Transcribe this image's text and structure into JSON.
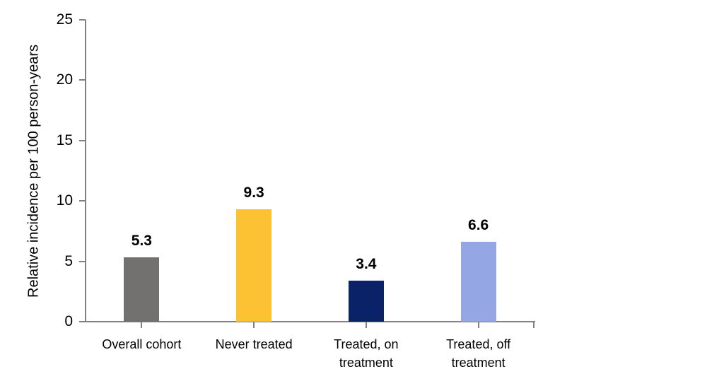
{
  "chart_data": {
    "type": "bar",
    "title": "",
    "ylabel": "Relative incidence per 100 person-years",
    "xlabel": "",
    "categories": [
      "Overall cohort",
      "Never treated",
      "Treated, on\ntreatment",
      "Treated, off\ntreatment"
    ],
    "values": [
      5.3,
      9.3,
      3.4,
      6.6
    ],
    "value_labels": [
      "5.3",
      "9.3",
      "3.4",
      "6.6"
    ],
    "bar_colors": [
      "#737070",
      "#FCC233",
      "#0A2268",
      "#94A7E4"
    ],
    "yticks": [
      0,
      5,
      10,
      15,
      20,
      25
    ],
    "ylim": [
      0,
      25
    ],
    "grid": "off",
    "legend": "none",
    "axis_color": "#808080",
    "text_color": "#000000",
    "background_color": "#FFFFFF"
  }
}
